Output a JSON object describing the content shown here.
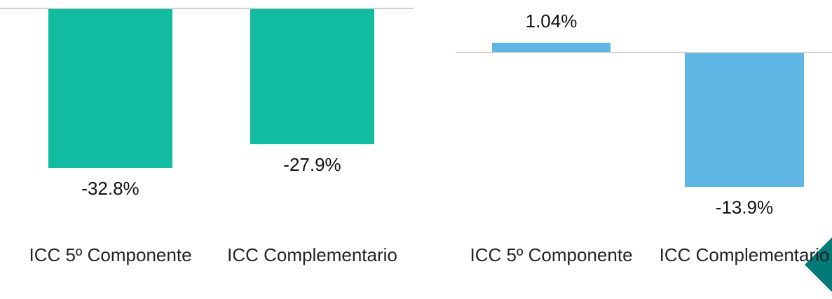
{
  "chart_data": [
    {
      "type": "bar",
      "categories": [
        "ICC 5º Componente",
        "ICC Complementario"
      ],
      "values": [
        -32.8,
        -27.9
      ],
      "value_labels": [
        "-32.8%",
        "-27.9%"
      ],
      "color": "#12bca0",
      "ylim": [
        -35,
        0
      ]
    },
    {
      "type": "bar",
      "categories": [
        "ICC 5º Componente",
        "ICC Complementario"
      ],
      "values": [
        1.04,
        -13.9
      ],
      "value_labels": [
        "1.04%",
        "-13.9%"
      ],
      "color": "#5fb6e4",
      "ylim": [
        -15,
        2
      ]
    }
  ]
}
